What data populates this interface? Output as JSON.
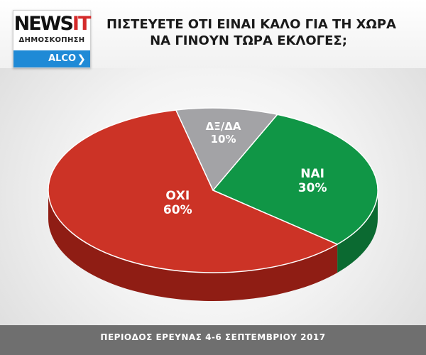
{
  "header": {
    "logo": {
      "wordmark_main": "NEWS",
      "wordmark_accent": "IT",
      "subtitle": "ΔΗΜΟΣΚΟΠΗΣΗ",
      "partner": "ALCO"
    },
    "title_line_1": "ΠΙΣΤΕΥΕΤΕ ΟΤΙ ΕΙΝΑΙ ΚΑΛΟ ΓΙΑ ΤΗ ΧΩΡΑ",
    "title_line_2": "ΝΑ ΓΙΝΟΥΝ ΤΩΡΑ ΕΚΛΟΓΕΣ;"
  },
  "footer": {
    "text": "ΠΕΡΙΟΔΟΣ ΕΡΕΥΝΑΣ 4-6 ΣΕΠΤΕΜΒΡΙΟΥ 2017"
  },
  "colors": {
    "accent_red": "#d42a2a",
    "logo_bar": "#1f8ad6",
    "footer_bg": "#6f6f6f"
  },
  "chart_data": {
    "type": "pie",
    "title": "ΠΙΣΤΕΥΕΤΕ ΟΤΙ ΕΙΝΑΙ ΚΑΛΟ ΓΙΑ ΤΗ ΧΩΡΑ ΝΑ ΓΙΝΟΥΝ ΤΩΡΑ ΕΚΛΟΓΕΣ;",
    "style": "3d",
    "slices": [
      {
        "label": "ΝΑΙ",
        "value": 30,
        "value_label": "30%",
        "color": "#109646",
        "side_color": "#0b6a31"
      },
      {
        "label": "ΟΧΙ",
        "value": 60,
        "value_label": "60%",
        "color": "#cc3326",
        "side_color": "#8f1d14"
      },
      {
        "label": "ΔΞ/ΔΑ",
        "value": 10,
        "value_label": "10%",
        "color": "#a3a3a6",
        "side_color": "#6e6e70"
      }
    ]
  }
}
